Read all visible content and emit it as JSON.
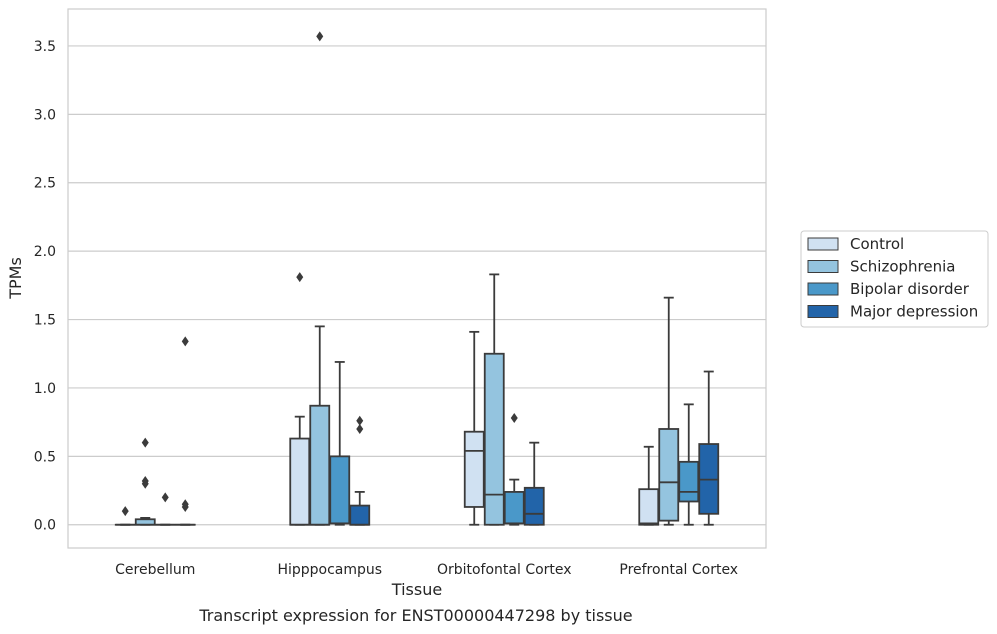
{
  "chart_data": {
    "type": "box",
    "title": "",
    "xlabel": "Tissue",
    "ylabel": "TPMs",
    "ylim": [
      -0.17,
      3.77
    ],
    "yticks": [
      "0.0",
      "0.5",
      "1.0",
      "1.5",
      "2.0",
      "2.5",
      "3.0",
      "3.5"
    ],
    "grid": "horizontal",
    "legend_position": "right",
    "categories": [
      "Cerebellum",
      "Hipppocampus",
      "Orbitofontal Cortex",
      "Prefrontal Cortex"
    ],
    "series": [
      {
        "name": "Control",
        "color": "#d0e1f2",
        "boxes": [
          {
            "min": 0,
            "q1": 0,
            "median": 0,
            "q3": 0,
            "max": 0,
            "outliers": [
              0.1
            ]
          },
          {
            "min": 0,
            "q1": 0,
            "median": 0,
            "q3": 0.63,
            "max": 0.79,
            "outliers": [
              1.81
            ]
          },
          {
            "min": 0,
            "q1": 0.13,
            "median": 0.54,
            "q3": 0.68,
            "max": 1.41,
            "outliers": []
          },
          {
            "min": 0,
            "q1": 0,
            "median": 0.01,
            "q3": 0.26,
            "max": 0.57,
            "outliers": []
          }
        ]
      },
      {
        "name": "Schizophrenia",
        "color": "#94c4df",
        "boxes": [
          {
            "min": 0,
            "q1": 0,
            "median": 0,
            "q3": 0.04,
            "max": 0.05,
            "outliers": [
              0.6,
              0.3,
              0.32
            ]
          },
          {
            "min": 0,
            "q1": 0,
            "median": 0,
            "q3": 0.87,
            "max": 1.45,
            "outliers": [
              3.57
            ]
          },
          {
            "min": 0,
            "q1": 0,
            "median": 0.22,
            "q3": 1.25,
            "max": 1.83,
            "outliers": []
          },
          {
            "min": 0,
            "q1": 0.03,
            "median": 0.31,
            "q3": 0.7,
            "max": 1.66,
            "outliers": []
          }
        ]
      },
      {
        "name": "Bipolar disorder",
        "color": "#4a98c9",
        "boxes": [
          {
            "min": 0,
            "q1": 0,
            "median": 0,
            "q3": 0,
            "max": 0,
            "outliers": [
              0.2
            ]
          },
          {
            "min": 0,
            "q1": 0.01,
            "median": 0.01,
            "q3": 0.5,
            "max": 1.19,
            "outliers": []
          },
          {
            "min": 0,
            "q1": 0.01,
            "median": 0.01,
            "q3": 0.24,
            "max": 0.33,
            "outliers": [
              0.78
            ]
          },
          {
            "min": 0,
            "q1": 0.17,
            "median": 0.24,
            "q3": 0.46,
            "max": 0.88,
            "outliers": []
          }
        ]
      },
      {
        "name": "Major depression",
        "color": "#2264a9",
        "boxes": [
          {
            "min": 0,
            "q1": 0,
            "median": 0,
            "q3": 0,
            "max": 0,
            "outliers": [
              1.34,
              0.15,
              0.13
            ]
          },
          {
            "min": 0,
            "q1": 0,
            "median": 0,
            "q3": 0.14,
            "max": 0.24,
            "outliers": [
              0.76,
              0.7
            ]
          },
          {
            "min": 0,
            "q1": 0,
            "median": 0.08,
            "q3": 0.27,
            "max": 0.6,
            "outliers": []
          },
          {
            "min": 0,
            "q1": 0.08,
            "median": 0.33,
            "q3": 0.59,
            "max": 1.12,
            "outliers": []
          }
        ]
      }
    ]
  },
  "caption": "Transcript expression for ENST00000447298 by tissue"
}
